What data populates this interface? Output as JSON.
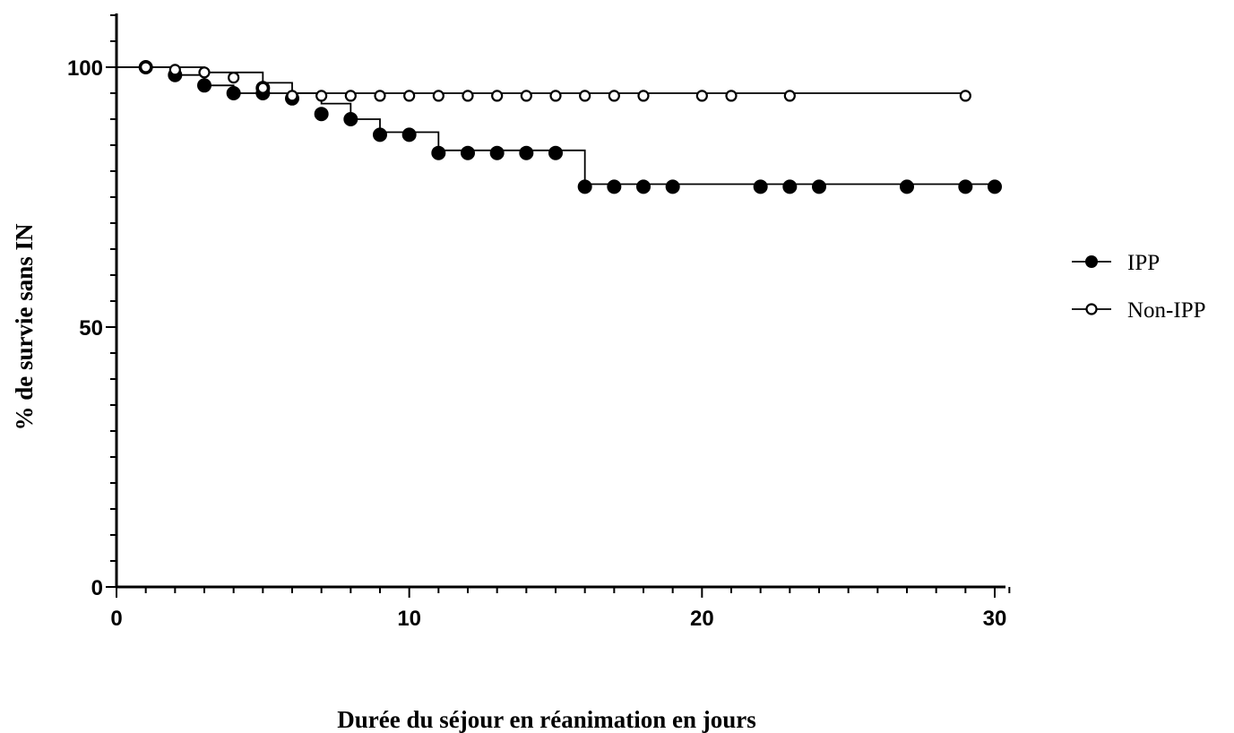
{
  "chart_data": {
    "type": "line",
    "step": true,
    "title": "",
    "xlabel": "Durée du séjour en réanimation en jours",
    "ylabel": "% de survie sans IN",
    "xlim": [
      0,
      30
    ],
    "ylim": [
      0,
      100
    ],
    "xticks": [
      0,
      10,
      20,
      30
    ],
    "yticks": [
      0,
      50,
      100
    ],
    "xticks_minor_step": 1,
    "yticks_minor_step": 5,
    "legend": "right",
    "series": [
      {
        "name": "IPP",
        "marker": "filled-circle",
        "color": "#000000",
        "steps": [
          [
            0,
            100
          ],
          [
            2,
            98.5
          ],
          [
            3,
            96.5
          ],
          [
            4,
            95
          ],
          [
            7,
            93
          ],
          [
            8,
            90
          ],
          [
            9,
            87.5
          ],
          [
            11,
            84
          ],
          [
            16,
            77.5
          ],
          [
            30,
            77.5
          ]
        ],
        "marks": [
          [
            1,
            100
          ],
          [
            2,
            98.5
          ],
          [
            3,
            96.5
          ],
          [
            4,
            95
          ],
          [
            5,
            95
          ],
          [
            5,
            96
          ],
          [
            6,
            94
          ],
          [
            7,
            91
          ],
          [
            8,
            90
          ],
          [
            9,
            87
          ],
          [
            10,
            87
          ],
          [
            11,
            83.5
          ],
          [
            12,
            83.5
          ],
          [
            13,
            83.5
          ],
          [
            14,
            83.5
          ],
          [
            15,
            83.5
          ],
          [
            16,
            77
          ],
          [
            17,
            77
          ],
          [
            18,
            77
          ],
          [
            19,
            77
          ],
          [
            22,
            77
          ],
          [
            23,
            77
          ],
          [
            24,
            77
          ],
          [
            27,
            77
          ],
          [
            29,
            77
          ],
          [
            30,
            77
          ]
        ]
      },
      {
        "name": "Non-IPP",
        "marker": "open-circle",
        "color": "#000000",
        "steps": [
          [
            0,
            100
          ],
          [
            3,
            99
          ],
          [
            5,
            97
          ],
          [
            6,
            95
          ],
          [
            29,
            95
          ]
        ],
        "marks": [
          [
            1,
            100
          ],
          [
            2,
            99.5
          ],
          [
            3,
            99
          ],
          [
            4,
            98
          ],
          [
            5,
            96
          ],
          [
            6,
            94.5
          ],
          [
            7,
            94.5
          ],
          [
            8,
            94.5
          ],
          [
            9,
            94.5
          ],
          [
            10,
            94.5
          ],
          [
            11,
            94.5
          ],
          [
            12,
            94.5
          ],
          [
            13,
            94.5
          ],
          [
            14,
            94.5
          ],
          [
            15,
            94.5
          ],
          [
            16,
            94.5
          ],
          [
            17,
            94.5
          ],
          [
            18,
            94.5
          ],
          [
            20,
            94.5
          ],
          [
            21,
            94.5
          ],
          [
            23,
            94.5
          ],
          [
            29,
            94.5
          ]
        ]
      }
    ]
  }
}
